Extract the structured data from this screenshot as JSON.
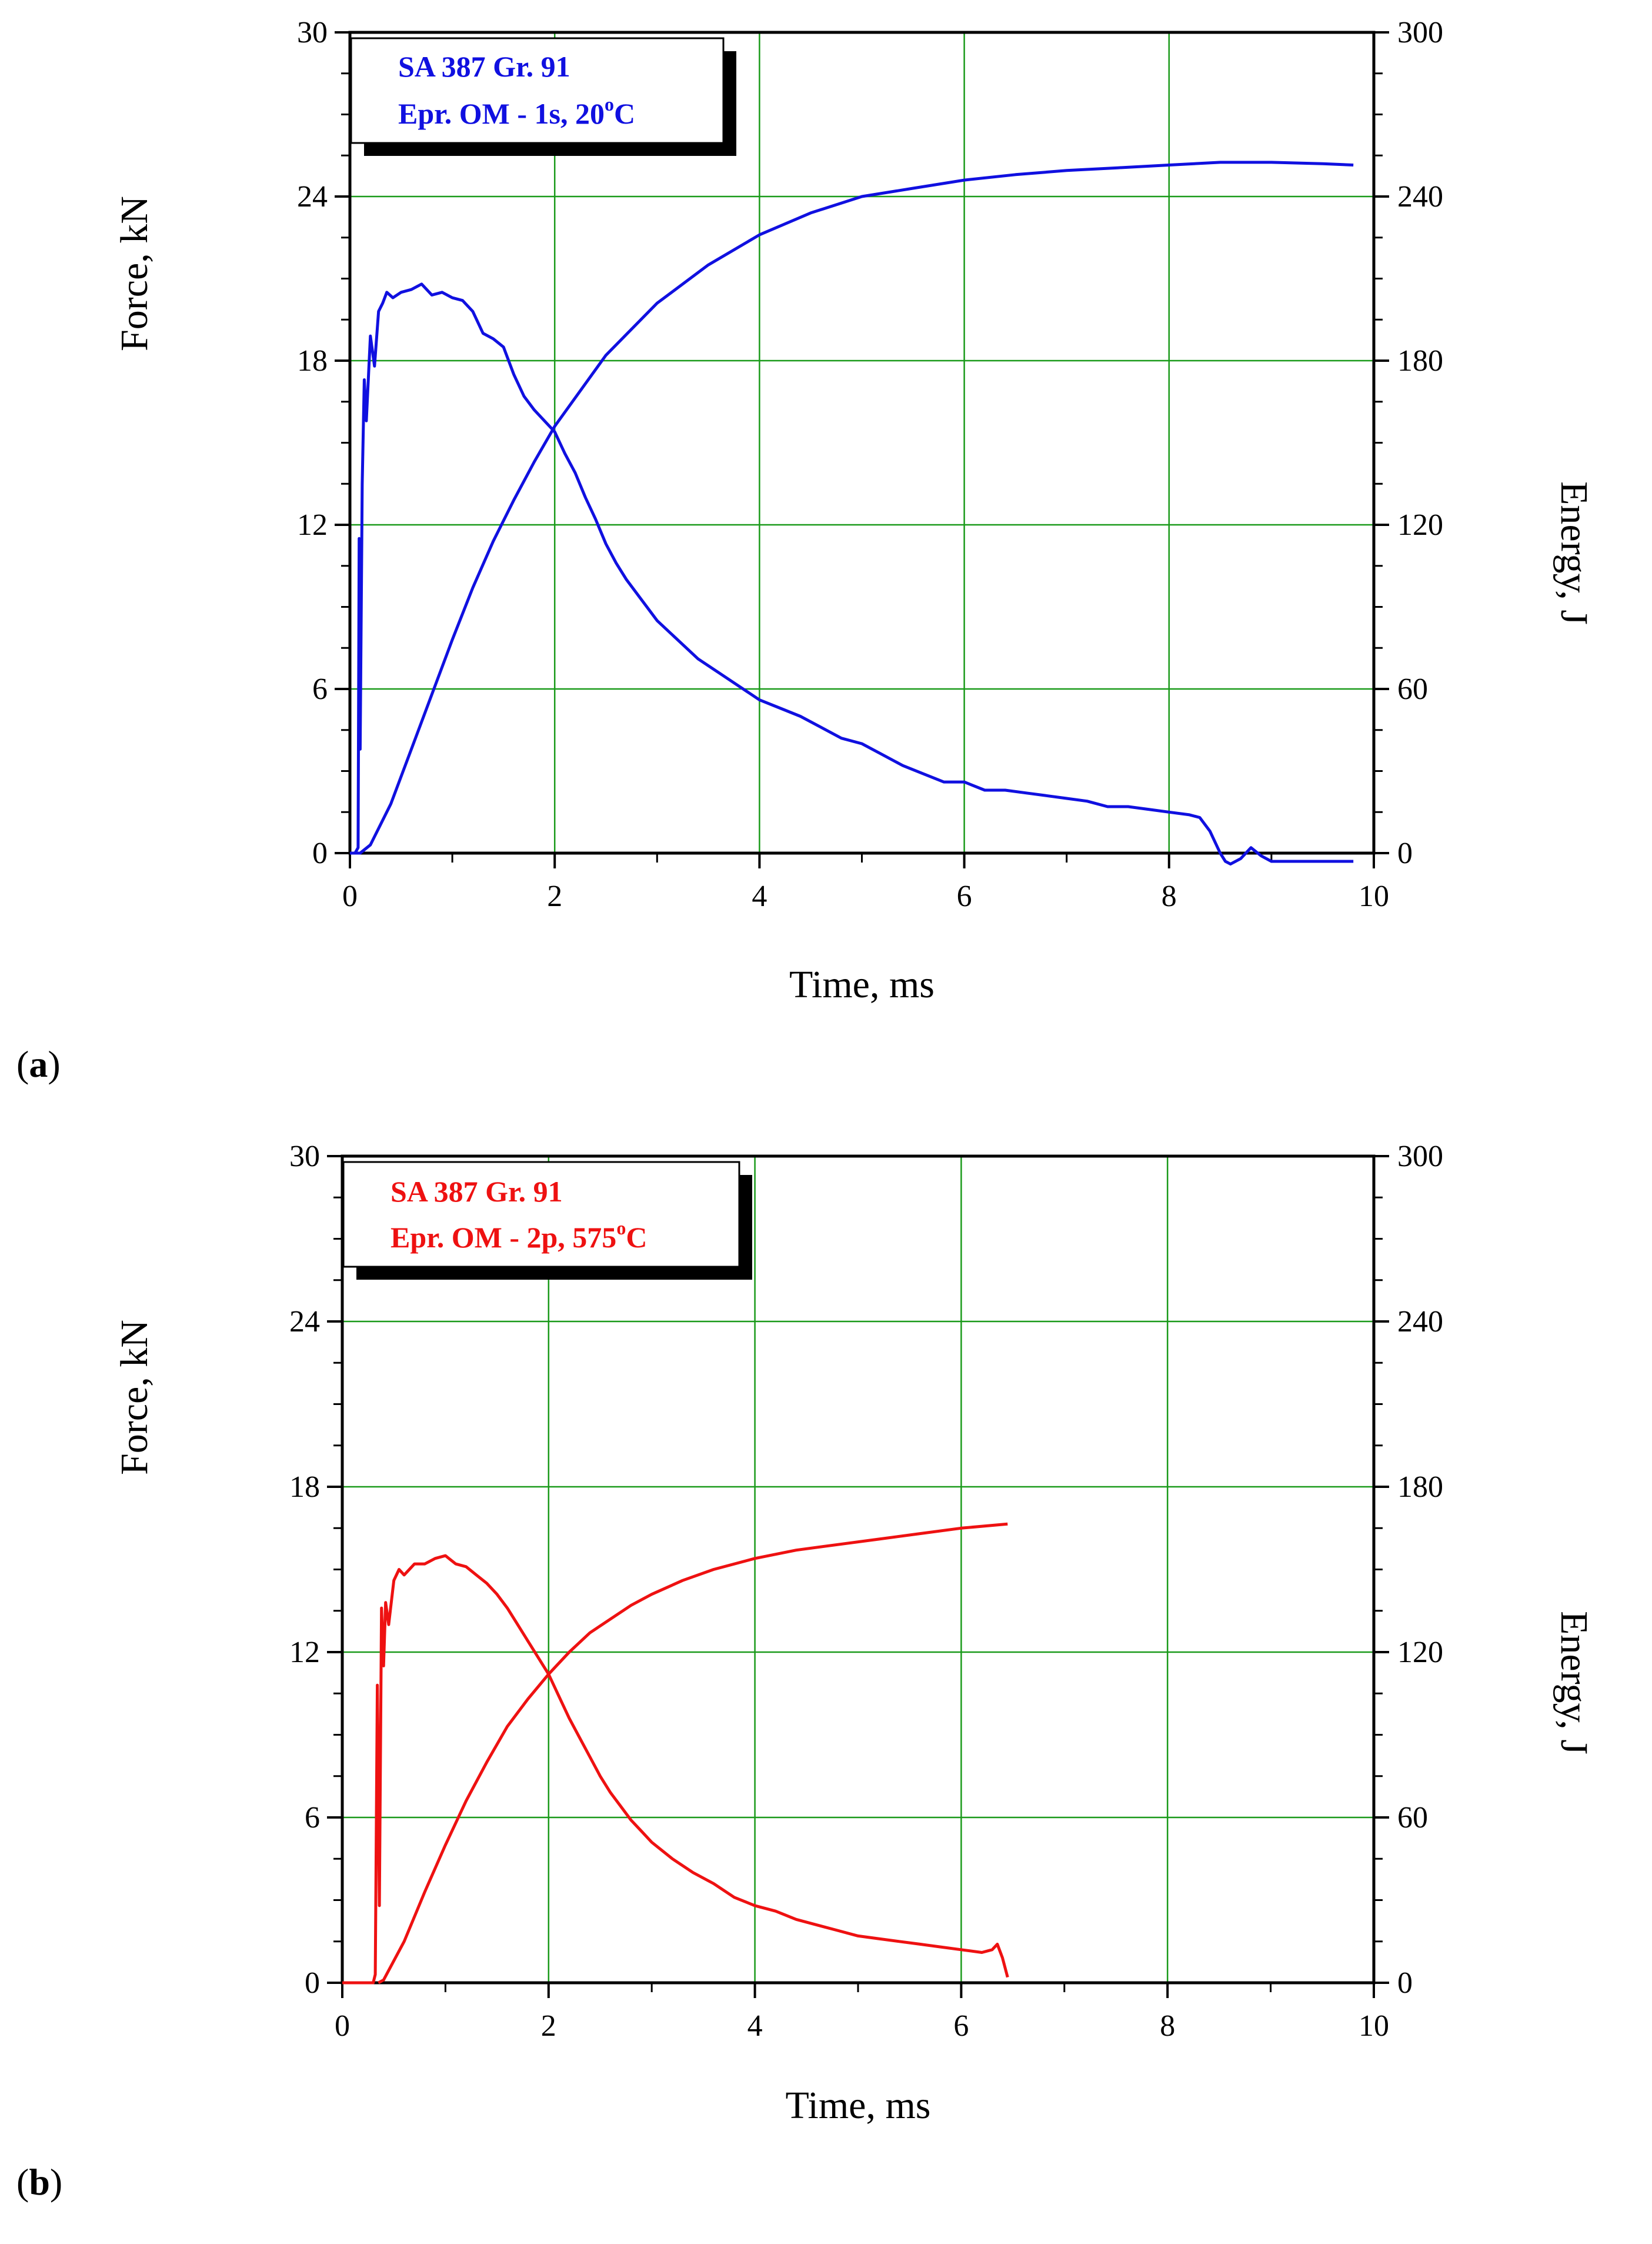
{
  "panels": [
    {
      "label_text": "a",
      "legend_line1": "SA 387 Gr. 91",
      "legend_line2": "Epr. OM - 1s,  20",
      "legend_sup": "o",
      "legend_unit": "C",
      "color": "#1010e0"
    },
    {
      "label_text": "b",
      "legend_line1": "SA 387 Gr. 91",
      "legend_line2": "Epr. OM - 2p,  575",
      "legend_sup": "o",
      "legend_unit": "C",
      "color": "#ee1111"
    }
  ],
  "chart_data": [
    {
      "type": "line",
      "panel": "a",
      "title": "",
      "xlabel": "Time, ms",
      "ylabel": "Force, kN",
      "y2label": "Energy, J",
      "xlim": [
        0,
        10
      ],
      "ylim": [
        0,
        30
      ],
      "y2lim": [
        0,
        300
      ],
      "xticks": [
        0,
        2,
        4,
        6,
        8,
        10
      ],
      "yticks": [
        0,
        6,
        12,
        18,
        24,
        30
      ],
      "y2ticks": [
        0,
        60,
        120,
        180,
        240,
        300
      ],
      "grid": true,
      "legend_position": "top-left",
      "series": [
        {
          "name": "Force",
          "axis": "left",
          "x": [
            0,
            0.05,
            0.08,
            0.09,
            0.1,
            0.12,
            0.14,
            0.16,
            0.2,
            0.24,
            0.28,
            0.32,
            0.36,
            0.42,
            0.5,
            0.6,
            0.7,
            0.8,
            0.9,
            1.0,
            1.1,
            1.2,
            1.3,
            1.4,
            1.5,
            1.6,
            1.7,
            1.8,
            1.9,
            2.0,
            2.1,
            2.2,
            2.3,
            2.4,
            2.5,
            2.6,
            2.7,
            2.8,
            2.9,
            3.0,
            3.2,
            3.4,
            3.6,
            3.8,
            4.0,
            4.2,
            4.4,
            4.6,
            4.8,
            5.0,
            5.2,
            5.4,
            5.6,
            5.8,
            6.0,
            6.2,
            6.4,
            6.6,
            6.8,
            7.0,
            7.2,
            7.4,
            7.6,
            7.8,
            8.0,
            8.2,
            8.3,
            8.4,
            8.5,
            8.55,
            8.6,
            8.7,
            8.8,
            8.9,
            9.0,
            9.2,
            9.4,
            9.6,
            9.8
          ],
          "y": [
            0,
            0,
            0.2,
            11.5,
            3.8,
            13.5,
            17.3,
            15.8,
            18.9,
            17.8,
            19.8,
            20.1,
            20.5,
            20.3,
            20.5,
            20.6,
            20.8,
            20.4,
            20.5,
            20.3,
            20.2,
            19.8,
            19.0,
            18.8,
            18.5,
            17.5,
            16.7,
            16.2,
            15.8,
            15.4,
            14.6,
            13.9,
            13.0,
            12.2,
            11.3,
            10.6,
            10.0,
            9.5,
            9.0,
            8.5,
            7.8,
            7.1,
            6.6,
            6.1,
            5.6,
            5.3,
            5.0,
            4.6,
            4.2,
            4.0,
            3.6,
            3.2,
            2.9,
            2.6,
            2.6,
            2.3,
            2.3,
            2.2,
            2.1,
            2.0,
            1.9,
            1.7,
            1.7,
            1.6,
            1.5,
            1.4,
            1.3,
            0.8,
            0.0,
            -0.3,
            -0.4,
            -0.2,
            0.2,
            -0.1,
            -0.3,
            -0.3,
            -0.3,
            -0.3,
            -0.3
          ]
        },
        {
          "name": "Energy",
          "axis": "right",
          "x": [
            0,
            0.1,
            0.2,
            0.4,
            0.6,
            0.8,
            1.0,
            1.2,
            1.4,
            1.6,
            1.8,
            2.0,
            2.5,
            3.0,
            3.5,
            4.0,
            4.5,
            5.0,
            5.5,
            6.0,
            6.5,
            7.0,
            7.5,
            8.0,
            8.5,
            9.0,
            9.5,
            9.8
          ],
          "y": [
            0,
            0,
            3,
            18,
            38,
            58,
            78,
            97,
            114,
            129,
            143,
            156,
            182,
            201,
            215,
            226,
            234,
            240,
            243,
            246,
            248,
            249.5,
            250.5,
            251.5,
            252.5,
            252.5,
            252,
            251.5
          ]
        }
      ]
    },
    {
      "type": "line",
      "panel": "b",
      "title": "",
      "xlabel": "Time, ms",
      "ylabel": "Force, kN",
      "y2label": "Energy, J",
      "xlim": [
        0,
        10
      ],
      "ylim": [
        0,
        30
      ],
      "y2lim": [
        0,
        300
      ],
      "xticks": [
        0,
        2,
        4,
        6,
        8,
        10
      ],
      "yticks": [
        0,
        6,
        12,
        18,
        24,
        30
      ],
      "y2ticks": [
        0,
        60,
        120,
        180,
        240,
        300
      ],
      "grid": true,
      "legend_position": "top-left",
      "series": [
        {
          "name": "Force",
          "axis": "left",
          "x": [
            0,
            0.3,
            0.32,
            0.34,
            0.36,
            0.38,
            0.4,
            0.42,
            0.45,
            0.5,
            0.55,
            0.6,
            0.7,
            0.8,
            0.9,
            1.0,
            1.1,
            1.2,
            1.3,
            1.4,
            1.5,
            1.6,
            1.7,
            1.8,
            1.9,
            2.0,
            2.1,
            2.2,
            2.3,
            2.4,
            2.5,
            2.6,
            2.7,
            2.8,
            2.9,
            3.0,
            3.2,
            3.4,
            3.6,
            3.8,
            4.0,
            4.2,
            4.4,
            4.6,
            4.8,
            5.0,
            5.2,
            5.4,
            5.6,
            5.8,
            6.0,
            6.2,
            6.3,
            6.35,
            6.4,
            6.45
          ],
          "y": [
            0,
            0,
            0.3,
            10.8,
            2.8,
            13.6,
            11.5,
            13.8,
            13.0,
            14.6,
            15.0,
            14.8,
            15.2,
            15.2,
            15.4,
            15.5,
            15.2,
            15.1,
            14.8,
            14.5,
            14.1,
            13.6,
            13.0,
            12.4,
            11.8,
            11.2,
            10.4,
            9.6,
            8.9,
            8.2,
            7.5,
            6.9,
            6.4,
            5.9,
            5.5,
            5.1,
            4.5,
            4.0,
            3.6,
            3.1,
            2.8,
            2.6,
            2.3,
            2.1,
            1.9,
            1.7,
            1.6,
            1.5,
            1.4,
            1.3,
            1.2,
            1.1,
            1.2,
            1.4,
            0.9,
            0.2
          ]
        },
        {
          "name": "Energy",
          "axis": "right",
          "x": [
            0.35,
            0.4,
            0.6,
            0.8,
            1.0,
            1.2,
            1.4,
            1.6,
            1.8,
            2.0,
            2.2,
            2.4,
            2.6,
            2.8,
            3.0,
            3.3,
            3.6,
            4.0,
            4.4,
            4.8,
            5.2,
            5.6,
            6.0,
            6.45
          ],
          "y": [
            0,
            1,
            15,
            33,
            50,
            66,
            80,
            93,
            103,
            112,
            120,
            127,
            132,
            137,
            141,
            146,
            150,
            154,
            157,
            159,
            161,
            163,
            165,
            166.5
          ]
        }
      ]
    }
  ]
}
